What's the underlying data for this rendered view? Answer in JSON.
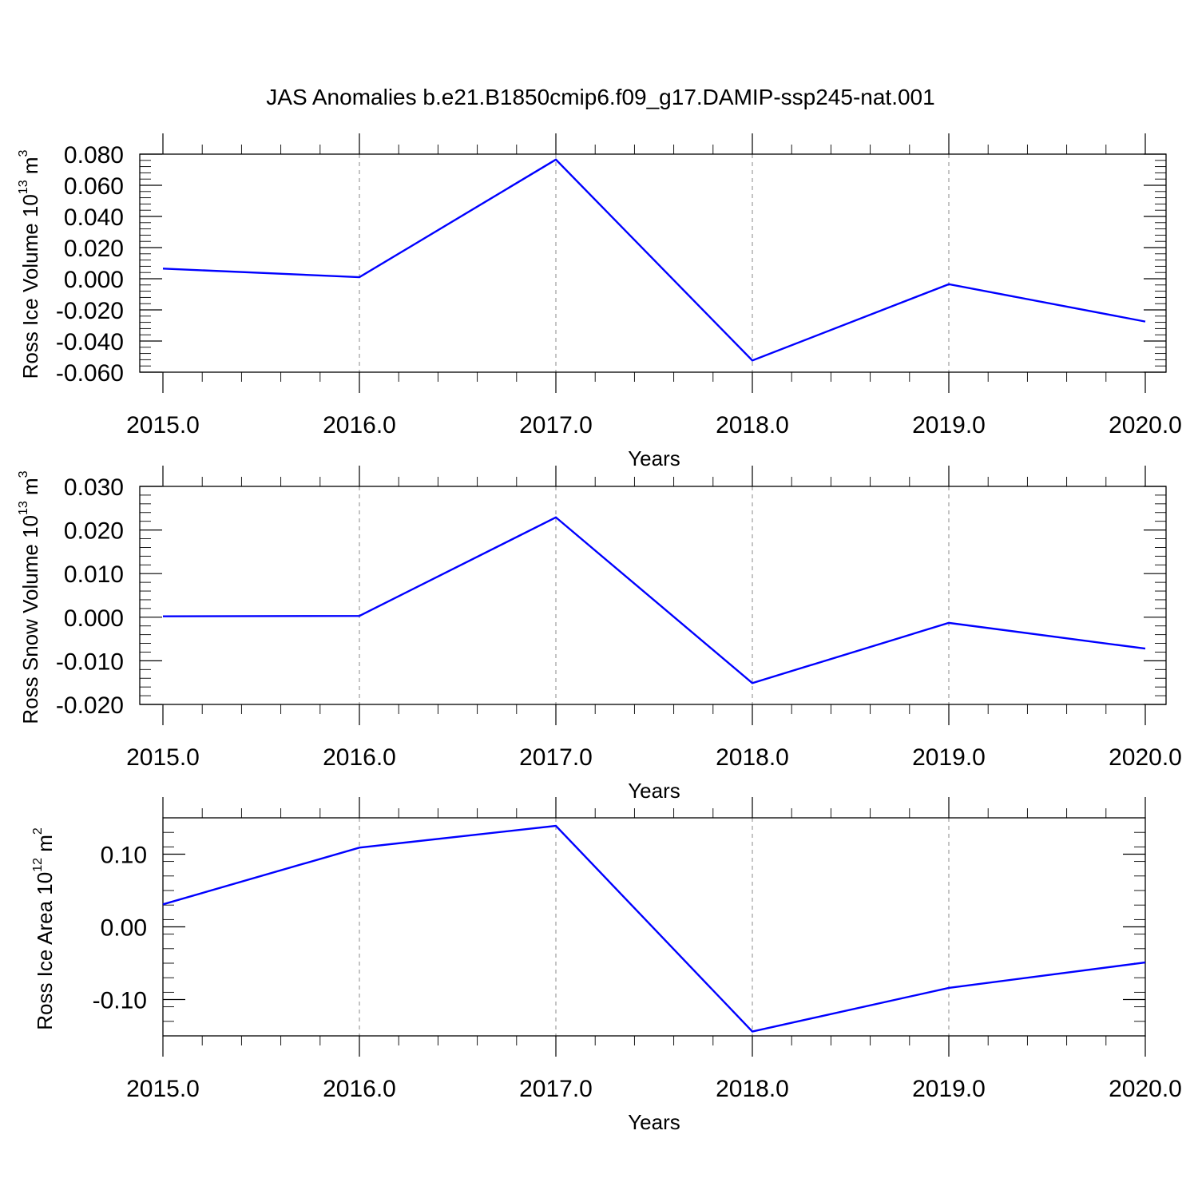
{
  "title": "JAS Anomalies b.e21.B1850cmip6.f09_g17.DAMIP-ssp245-nat.001",
  "line_color": "#0000ff",
  "chart_data": [
    {
      "type": "line",
      "ylabel": "Ross Ice Volume 10",
      "ylabel_exp": "13",
      "ylabel_unit": " m",
      "ylabel_unit_exp": "3",
      "xlabel": "Years",
      "x": [
        2015,
        2016,
        2017,
        2018,
        2019,
        2020
      ],
      "values": [
        0.0065,
        0.001,
        0.0765,
        -0.0525,
        -0.0035,
        -0.0275
      ],
      "xlim": [
        2015,
        2020
      ],
      "ylim": [
        -0.06,
        0.08
      ],
      "yticks": [
        0.08,
        0.06,
        0.04,
        0.02,
        0.0,
        -0.02,
        -0.04,
        -0.06
      ],
      "ytick_labels": [
        "0.080",
        "0.060",
        "0.040",
        "0.020",
        "0.000",
        "-0.020",
        "-0.040",
        "-0.060"
      ],
      "xticks": [
        2015,
        2016,
        2017,
        2018,
        2019,
        2020
      ],
      "xtick_labels": [
        "2015.0",
        "2016.0",
        "2017.0",
        "2018.0",
        "2019.0",
        "2020.0"
      ],
      "grid": "vertical dashed"
    },
    {
      "type": "line",
      "ylabel": "Ross Snow Volume 10",
      "ylabel_exp": "13",
      "ylabel_unit": " m",
      "ylabel_unit_exp": "3",
      "xlabel": "Years",
      "x": [
        2015,
        2016,
        2017,
        2018,
        2019,
        2020
      ],
      "values": [
        0.0002,
        0.0003,
        0.0229,
        -0.0151,
        -0.0013,
        -0.0072
      ],
      "xlim": [
        2015,
        2020
      ],
      "ylim": [
        -0.02,
        0.03
      ],
      "yticks": [
        0.03,
        0.02,
        0.01,
        0.0,
        -0.01,
        -0.02
      ],
      "ytick_labels": [
        "0.030",
        "0.020",
        "0.010",
        "0.000",
        "-0.010",
        "-0.020"
      ],
      "xticks": [
        2015,
        2016,
        2017,
        2018,
        2019,
        2020
      ],
      "xtick_labels": [
        "2015.0",
        "2016.0",
        "2017.0",
        "2018.0",
        "2019.0",
        "2020.0"
      ],
      "grid": "vertical dashed"
    },
    {
      "type": "line",
      "ylabel": "Ross Ice Area 10",
      "ylabel_exp": "12",
      "ylabel_unit": " m",
      "ylabel_unit_exp": "2",
      "xlabel": "Years",
      "x": [
        2015,
        2016,
        2017,
        2018,
        2019,
        2020
      ],
      "values": [
        0.031,
        0.109,
        0.139,
        -0.144,
        -0.084,
        -0.049
      ],
      "xlim": [
        2015,
        2020
      ],
      "ylim": [
        -0.15,
        0.15
      ],
      "yticks": [
        0.1,
        0.0,
        -0.1
      ],
      "ytick_labels": [
        "0.10",
        "0.00",
        "-0.10"
      ],
      "xticks": [
        2015,
        2016,
        2017,
        2018,
        2019,
        2020
      ],
      "xtick_labels": [
        "2015.0",
        "2016.0",
        "2017.0",
        "2018.0",
        "2019.0",
        "2020.0"
      ],
      "grid": "vertical dashed"
    }
  ]
}
